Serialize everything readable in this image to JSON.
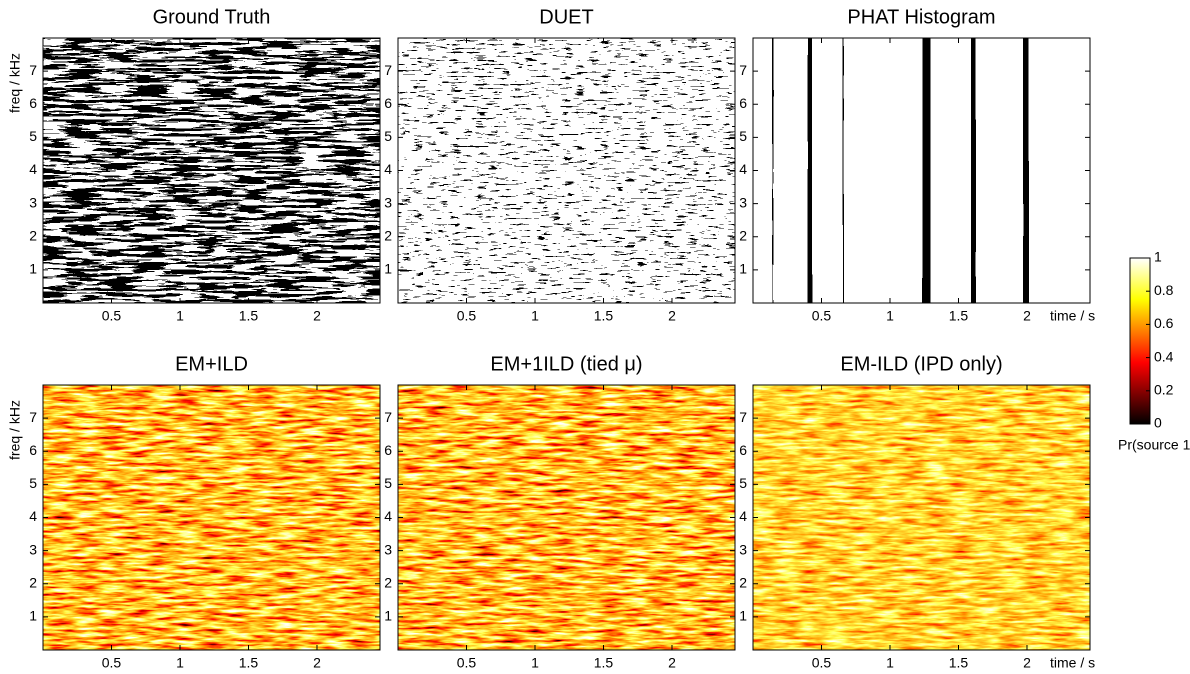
{
  "chart_data": [
    {
      "type": "heatmap",
      "title": "Ground Truth",
      "colormap": "binary",
      "ylabel": "freq / kHz",
      "xlim": [
        0,
        2.46
      ],
      "xticks": [
        0.5,
        1,
        1.5,
        2
      ],
      "ylim": [
        0,
        8
      ],
      "yticks": [
        1,
        2,
        3,
        4,
        5,
        6,
        7
      ]
    },
    {
      "type": "heatmap",
      "title": "DUET",
      "colormap": "binary",
      "xlim": [
        0,
        2.46
      ],
      "xticks": [
        0.5,
        1,
        1.5,
        2
      ],
      "ylim": [
        0,
        8
      ],
      "yticks": [
        1,
        2,
        3,
        4,
        5,
        6,
        7
      ]
    },
    {
      "type": "heatmap",
      "title": "PHAT Histogram",
      "colormap": "binary",
      "xlabel": "time / s",
      "xlim": [
        0,
        2.46
      ],
      "xticks": [
        0.5,
        1,
        1.5,
        2
      ],
      "ylim": [
        0,
        8
      ],
      "yticks": [
        1,
        2,
        3,
        4,
        5,
        6,
        7
      ]
    },
    {
      "type": "heatmap",
      "title": "EM+ILD",
      "colormap": "hot",
      "ylabel": "freq / kHz",
      "xlim": [
        0,
        2.46
      ],
      "xticks": [
        0.5,
        1,
        1.5,
        2
      ],
      "ylim": [
        0,
        8
      ],
      "yticks": [
        1,
        2,
        3,
        4,
        5,
        6,
        7
      ]
    },
    {
      "type": "heatmap",
      "title": "EM+1ILD (tied μ)",
      "colormap": "hot",
      "xlim": [
        0,
        2.46
      ],
      "xticks": [
        0.5,
        1,
        1.5,
        2
      ],
      "ylim": [
        0,
        8
      ],
      "yticks": [
        1,
        2,
        3,
        4,
        5,
        6,
        7
      ]
    },
    {
      "type": "heatmap",
      "title": "EM-ILD (IPD only)",
      "colormap": "hot",
      "xlabel": "time / s",
      "xlim": [
        0,
        2.46
      ],
      "xticks": [
        0.5,
        1,
        1.5,
        2
      ],
      "ylim": [
        0,
        8
      ],
      "yticks": [
        1,
        2,
        3,
        4,
        5,
        6,
        7
      ]
    }
  ],
  "colorbar": {
    "label": "Pr(source 1)",
    "ylim": [
      0,
      1
    ],
    "yticks": [
      0,
      0.2,
      0.4,
      0.6,
      0.8,
      1
    ]
  }
}
